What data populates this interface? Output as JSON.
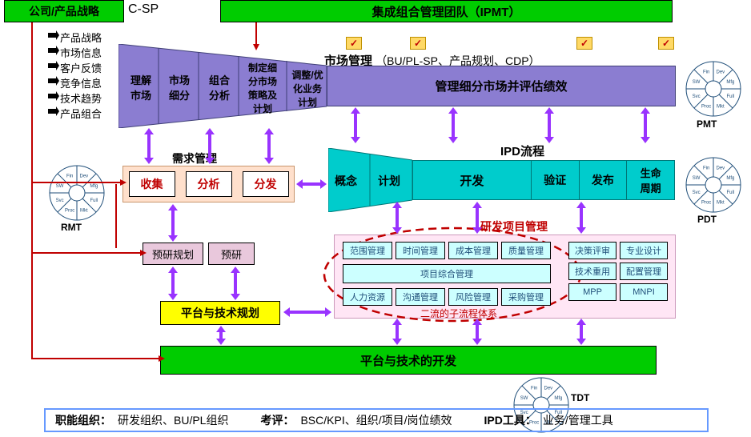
{
  "colors": {
    "green": "#00cc00",
    "purplePanel": "#8b7dd1",
    "purpleDark": "#6a5acd",
    "cyan": "#00cccc",
    "cyanLight": "#99ffff",
    "pinkPanel": "#ffe6f0",
    "pinkBox": "#d9a6c2",
    "yellow": "#ffff00",
    "redText": "#c00000",
    "blueText": "#1f4e79",
    "footerBorder": "#6699ff",
    "wheelBlue": "#1f4e79"
  },
  "topLeft": {
    "text": "公司/产品战略",
    "code": "C-SP"
  },
  "topRight": {
    "text": "集成组合管理团队（IPMT）"
  },
  "leftInputs": [
    "产品战略",
    "市场信息",
    "客户反馈",
    "竞争信息",
    "技术趋势",
    "产品组合"
  ],
  "market": {
    "title": "市场管理",
    "subtitle": "（BU/PL-SP、产品规划、CDP）",
    "funnel": [
      "理解\n市场",
      "市场\n细分",
      "组合\n分析",
      "制定细\n分市场\n策略及\n计划",
      "调整/优\n化业务\n计划"
    ],
    "bar": "管理细分市场并评估绩效"
  },
  "demand": {
    "title": "需求管理",
    "steps": [
      "收集",
      "分析",
      "分发"
    ]
  },
  "ipd": {
    "title": "IPD流程",
    "funnel": [
      "概念",
      "计划"
    ],
    "bar": [
      "开发",
      "验证",
      "发布",
      "生命\n周期"
    ]
  },
  "rd": {
    "title": "研发项目管理",
    "row1": [
      "范围管理",
      "时间管理",
      "成本管理",
      "质量管理"
    ],
    "center": "项目综合管理",
    "row3": [
      "人力资源",
      "沟通管理",
      "风险管理",
      "采购管理"
    ],
    "rightCol": [
      "决策评审",
      "专业设计",
      "技术重用",
      "配置管理",
      "MPP",
      "MNPI"
    ],
    "subtext": "二流的子流程体系"
  },
  "preResearch": [
    "预研规划",
    "预研"
  ],
  "platformPlan": "平台与技术规划",
  "platformDev": "平台与技术的开发",
  "wheels": {
    "labels": [
      "Dev",
      "Mfg",
      "Full",
      "Mkt",
      "Proc",
      "Svc",
      "SW",
      "Fin"
    ],
    "rmt": "RMT",
    "pmt": "PMT",
    "pdt": "PDT",
    "tdt": "TDT"
  },
  "footer": {
    "org": "职能组织：",
    "orgVal": "研发组织、BU/PL组织",
    "eval": "考评：",
    "evalVal": "BSC/KPI、组织/项目/岗位绩效",
    "tool": "IPD工具：",
    "toolVal": "业务/管理工具"
  }
}
